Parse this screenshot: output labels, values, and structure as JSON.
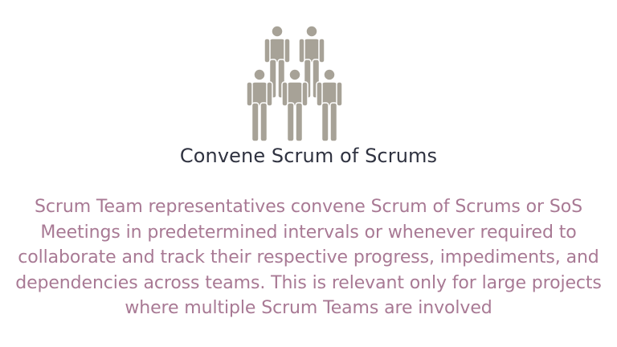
{
  "slide": {
    "icon": "group-of-people-icon",
    "icon_color": "#a7a297",
    "title": "Convene Scrum of Scrums",
    "title_color": "#2f3240",
    "description": "Scrum Team representatives convene Scrum of Scrums or SoS Meetings in predetermined intervals or whenever required to collaborate and track their respective progress, impediments, and dependencies across teams. This is relevant only for large projects where multiple Scrum Teams are involved",
    "description_color": "#a87994"
  }
}
